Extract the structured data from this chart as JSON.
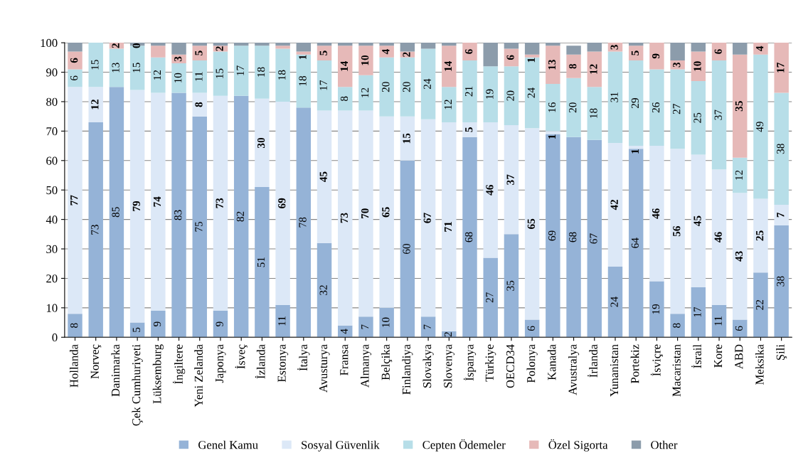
{
  "chart_data": {
    "type": "bar",
    "stacked": true,
    "categories": [
      "Hollanda",
      "Norveç",
      "Danimarka",
      "Çek Cumhuriyeti",
      "Lüksemburg",
      "İngiltere",
      "Yeni Zelanda",
      "Japonya",
      "İsveç",
      "İzlanda",
      "Estonya",
      "İtalya",
      "Avusturya",
      "Fransa",
      "Almanya",
      "Belçika",
      "Finlandiya",
      "Slovakya",
      "Slovenya",
      "İspanya",
      "Türkiye",
      "OECD34",
      "Polonya",
      "Kanada",
      "Avustralya",
      "İrlanda",
      "Yunanistan",
      "Portekiz",
      "İsviçre",
      "Macaristan",
      "İsrail",
      "Kore",
      "ABD",
      "Meksika",
      "Şili"
    ],
    "series": [
      {
        "name": "Genel Kamu",
        "color": "#95b3d7",
        "values": [
          8,
          73,
          85,
          5,
          9,
          83,
          75,
          9,
          82,
          51,
          11,
          78,
          32,
          4,
          7,
          10,
          60,
          7,
          2,
          68,
          27,
          35,
          6,
          69,
          68,
          67,
          24,
          64,
          19,
          8,
          17,
          11,
          6,
          22,
          38
        ],
        "value_labels": [
          "8",
          "73",
          "85",
          "5",
          "9",
          "83",
          "75",
          "9",
          "82",
          "51",
          "11",
          "78",
          "32",
          "4",
          "7",
          "10",
          "60",
          "7",
          "2",
          "68",
          "27",
          "35",
          "6",
          "69",
          "68",
          "67",
          "24",
          "64",
          "19",
          "8",
          "17",
          "11",
          "6",
          "22",
          "38"
        ]
      },
      {
        "name": "Sosyal Güvenlik",
        "color": "#dce8f7",
        "values": [
          77,
          12,
          0,
          79,
          74,
          0,
          8,
          73,
          0,
          30,
          69,
          0,
          45,
          73,
          70,
          65,
          15,
          67,
          71,
          5,
          46,
          37,
          65,
          1,
          0,
          0,
          42,
          1,
          46,
          56,
          45,
          46,
          43,
          25,
          7
        ],
        "value_labels": [
          "77",
          "12",
          null,
          "79",
          "74",
          null,
          "8",
          "73",
          null,
          "30",
          "69",
          null,
          "45",
          "73",
          "70",
          "65",
          "15",
          "67",
          "71",
          "5",
          "46",
          "37",
          "65",
          "1",
          null,
          null,
          "42",
          "1",
          "46",
          "56",
          "45",
          "46",
          "43",
          "25",
          "7"
        ]
      },
      {
        "name": "Cepten Ödemeler",
        "color": "#b7dee8",
        "values": [
          6,
          15,
          13,
          15,
          12,
          10,
          11,
          15,
          17,
          18,
          18,
          18,
          17,
          8,
          12,
          20,
          20,
          24,
          12,
          21,
          19,
          20,
          24,
          16,
          20,
          18,
          31,
          29,
          26,
          27,
          25,
          37,
          12,
          49,
          38
        ],
        "value_labels": [
          "6",
          "15",
          "13",
          "15",
          "12",
          "10",
          "11",
          "15",
          "17",
          "18",
          "18",
          "18",
          "17",
          "8",
          "12",
          "20",
          "20",
          "24",
          "12",
          "21",
          "19",
          "20",
          "24",
          "16",
          "20",
          "18",
          "31",
          "29",
          "26",
          "27",
          "25",
          "37",
          "12",
          "49",
          "38"
        ]
      },
      {
        "name": "Özel Sigorta",
        "color": "#e6b9b8",
        "values": [
          6,
          0,
          2,
          0,
          4,
          3,
          5,
          2,
          0,
          0,
          1,
          1,
          5,
          14,
          10,
          4,
          2,
          0,
          14,
          6,
          0,
          6,
          1,
          13,
          8,
          12,
          3,
          5,
          9,
          3,
          10,
          6,
          35,
          4,
          17
        ],
        "value_labels": [
          "6",
          null,
          "2",
          "0",
          null,
          "3",
          "5",
          "2",
          null,
          null,
          null,
          "1",
          "5",
          "14",
          "10",
          "4",
          "2",
          null,
          "14",
          "6",
          null,
          "6",
          "1",
          "13",
          "8",
          "12",
          "3",
          "5",
          "9",
          "3",
          "10",
          "6",
          "35",
          "4",
          "17"
        ]
      },
      {
        "name": "Other",
        "color": "#8c9cab",
        "values": [
          3,
          0,
          0,
          1,
          1,
          4,
          1,
          1,
          1,
          1,
          1,
          3,
          1,
          1,
          1,
          1,
          3,
          2,
          1,
          0,
          8,
          2,
          4,
          1,
          3,
          3,
          0,
          1,
          0,
          6,
          3,
          0,
          4,
          0,
          0
        ]
      }
    ],
    "ylim": [
      0,
      100
    ],
    "yticks": [
      0,
      10,
      20,
      30,
      40,
      50,
      60,
      70,
      80,
      90,
      100
    ],
    "grid": "y",
    "legend": "bottom"
  }
}
